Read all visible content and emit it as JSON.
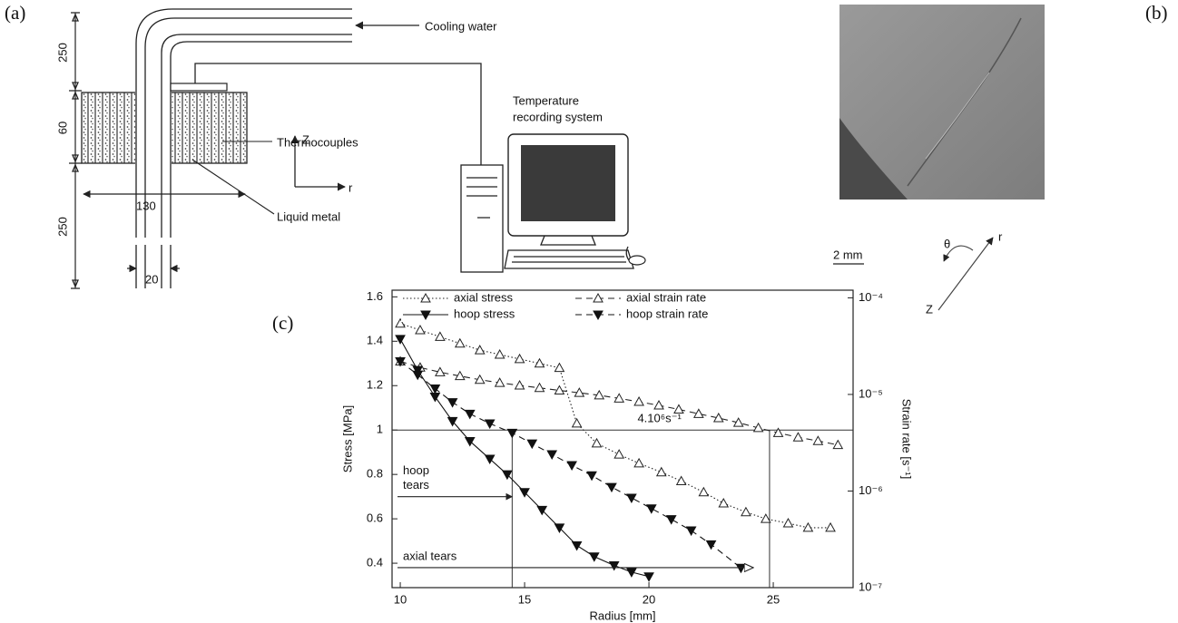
{
  "panel_labels": {
    "a": "(a)",
    "b": "(b)",
    "c": "(c)"
  },
  "figure_a": {
    "cooling_water": "Cooling water",
    "thermocouples": "Thermocouples",
    "temperature_recording": [
      "Temperature",
      "recording system"
    ],
    "liquid_metal": "Liquid metal",
    "axis_z": "Z",
    "axis_r": "r",
    "dimensions": {
      "top_height": "250",
      "block_height": "60",
      "bottom_height": "250",
      "width": "130",
      "pipe_diameter": "20"
    }
  },
  "figure_b": {
    "scale_bar": "2 mm",
    "axis_theta": "θ",
    "axis_r": "r",
    "axis_z": "Z"
  },
  "chart_data": {
    "type": "line",
    "xlabel": "Radius  [mm]",
    "ylabel": "Stress  [MPa]",
    "y2label": "Strain rate [s⁻¹]",
    "xlim": [
      9.67,
      28.21
    ],
    "xticks": [
      10,
      15,
      20,
      25
    ],
    "ylim": [
      0.29,
      1.63
    ],
    "yticks": [
      0.4,
      0.6,
      0.8,
      1,
      1.2,
      1.4,
      1.6
    ],
    "y2lim": [
      1e-07,
      0.00012
    ],
    "y2scale": "log",
    "y2ticks": [
      {
        "value": 0.0001,
        "label": "10⁻⁴"
      },
      {
        "value": 1e-05,
        "label": "10⁻⁵"
      },
      {
        "value": 1e-06,
        "label": "10⁻⁶"
      },
      {
        "value": 1e-07,
        "label": "10⁻⁷"
      }
    ],
    "legend": "top",
    "series": [
      {
        "name": "axial stress",
        "color": "#222222",
        "marker": "triangle-up-open",
        "linestyle": "dotted",
        "axis": "y",
        "x": [
          10,
          10.8,
          11.6,
          12.4,
          13.2,
          14.0,
          14.8,
          15.6,
          16.4,
          17.1,
          17.9,
          18.8,
          19.6,
          20.5,
          21.3,
          22.2,
          23.0,
          23.9,
          24.7,
          25.6,
          26.4,
          27.3
        ],
        "values": [
          1.48,
          1.45,
          1.42,
          1.39,
          1.36,
          1.34,
          1.32,
          1.3,
          1.28,
          1.03,
          0.94,
          0.89,
          0.85,
          0.81,
          0.77,
          0.72,
          0.67,
          0.63,
          0.6,
          0.58,
          0.56,
          0.56
        ]
      },
      {
        "name": "axial  strain  rate",
        "color": "#222222",
        "marker": "triangle-up-open",
        "linestyle": "dashed",
        "axis": "y2",
        "x": [
          10,
          10.8,
          11.6,
          12.4,
          13.2,
          14.0,
          14.8,
          15.6,
          16.4,
          17.2,
          18.0,
          18.8,
          19.6,
          20.4,
          21.2,
          22.0,
          22.8,
          23.6,
          24.4,
          25.2,
          26.0,
          26.8,
          27.6
        ],
        "values": [
          2.2e-05,
          1.9e-05,
          1.7e-05,
          1.55e-05,
          1.42e-05,
          1.32e-05,
          1.24e-05,
          1.17e-05,
          1.1e-05,
          1.04e-05,
          9.8e-06,
          9.1e-06,
          8.4e-06,
          7.7e-06,
          7e-06,
          6.3e-06,
          5.7e-06,
          5.1e-06,
          4.5e-06,
          4e-06,
          3.6e-06,
          3.3e-06,
          3e-06
        ]
      },
      {
        "name": "hoop  stress",
        "color": "#111111",
        "marker": "triangle-down-filled",
        "linestyle": "solid",
        "axis": "y",
        "x": [
          10,
          10.7,
          11.4,
          12.1,
          12.8,
          13.6,
          14.3,
          15.0,
          15.7,
          16.4,
          17.1,
          17.8,
          18.6,
          19.3,
          20.0
        ],
        "values": [
          1.41,
          1.27,
          1.15,
          1.04,
          0.95,
          0.87,
          0.8,
          0.72,
          0.64,
          0.56,
          0.48,
          0.43,
          0.39,
          0.36,
          0.34
        ]
      },
      {
        "name": "hoop  strain  rate",
        "color": "#111111",
        "marker": "triangle-down-filled",
        "linestyle": "dashed",
        "axis": "y2",
        "x": [
          10,
          10.7,
          11.4,
          12.1,
          12.8,
          13.6,
          14.5,
          15.3,
          16.1,
          16.9,
          17.7,
          18.5,
          19.3,
          20.1,
          20.9,
          21.7,
          22.5,
          23.7
        ],
        "values": [
          2.2e-05,
          1.6e-05,
          1.15e-05,
          8.3e-06,
          6.3e-06,
          5e-06,
          4e-06,
          3.1e-06,
          2.4e-06,
          1.85e-06,
          1.45e-06,
          1.1e-06,
          8.5e-07,
          6.6e-07,
          5.1e-07,
          3.9e-07,
          2.8e-07,
          1.6e-07
        ]
      }
    ],
    "reference_lines": {
      "y": [
        {
          "value": 1,
          "label": "4.10⁶s⁻¹"
        }
      ],
      "x": [
        14.5,
        24.85
      ]
    },
    "annotations": [
      {
        "lines": [
          "hoop",
          "tears"
        ],
        "x": 14.5,
        "y": 0.7,
        "arrowhead": "filled"
      },
      {
        "lines": [
          "axial tears"
        ],
        "x": 24.2,
        "y": 0.38,
        "arrowhead": "open"
      }
    ]
  }
}
